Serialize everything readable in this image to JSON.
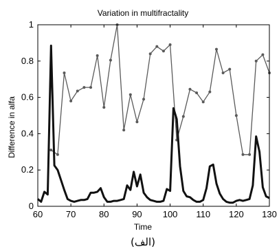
{
  "chart_data": {
    "type": "line",
    "title": "Variation in multifractality",
    "xlabel": "Time",
    "ylabel": "Difference in alfa",
    "caption": "(الف)",
    "xlim": [
      60,
      130
    ],
    "ylim": [
      0,
      1
    ],
    "xticks": [
      60,
      70,
      80,
      90,
      100,
      110,
      120,
      130
    ],
    "yticks": [
      0,
      0.2,
      0.4,
      0.6,
      0.8,
      1
    ],
    "ytick_labels": [
      "0",
      "0.2",
      "0.4",
      "0.6",
      "0.8",
      "1"
    ],
    "grid": false,
    "colors": {
      "thin_series": "#5a5a5a",
      "thick_series": "#111111",
      "axes": "#000000"
    },
    "series": [
      {
        "style": "thin-with-dot-markers",
        "x": [
          64,
          66,
          68,
          70,
          72,
          74,
          76,
          78,
          80,
          82,
          84,
          86,
          88,
          90,
          92,
          94,
          96,
          98,
          100,
          102,
          104,
          106,
          108,
          110,
          112,
          114,
          116,
          118,
          120,
          122,
          124,
          126,
          128,
          130
        ],
        "y": [
          0.31,
          0.285,
          0.735,
          0.58,
          0.635,
          0.655,
          0.655,
          0.83,
          0.545,
          0.805,
          1.0,
          0.42,
          0.615,
          0.465,
          0.59,
          0.84,
          0.88,
          0.855,
          0.89,
          0.365,
          0.495,
          0.645,
          0.625,
          0.575,
          0.63,
          0.865,
          0.735,
          0.755,
          0.5,
          0.285,
          0.285,
          0.8,
          0.835,
          0.735
        ]
      },
      {
        "style": "thick",
        "x": [
          60,
          61,
          62,
          63,
          64,
          65,
          66,
          67,
          68,
          69,
          70,
          71,
          72,
          73,
          74,
          75,
          76,
          77,
          78,
          79,
          80,
          81,
          82,
          83,
          84,
          85,
          86,
          87,
          88,
          89,
          90,
          91,
          92,
          93,
          94,
          95,
          96,
          97,
          98,
          99,
          100,
          101,
          102,
          103,
          104,
          105,
          106,
          107,
          108,
          109,
          110,
          111,
          112,
          113,
          114,
          115,
          116,
          117,
          118,
          119,
          120,
          121,
          122,
          123,
          124,
          125,
          126,
          127,
          128,
          129,
          130
        ],
        "y": [
          0.04,
          0.025,
          0.08,
          0.065,
          0.885,
          0.225,
          0.2,
          0.145,
          0.09,
          0.04,
          0.03,
          0.025,
          0.03,
          0.035,
          0.035,
          0.04,
          0.075,
          0.075,
          0.08,
          0.1,
          0.05,
          0.025,
          0.025,
          0.03,
          0.03,
          0.035,
          0.04,
          0.115,
          0.09,
          0.19,
          0.11,
          0.175,
          0.075,
          0.05,
          0.035,
          0.03,
          0.025,
          0.025,
          0.03,
          0.095,
          0.085,
          0.54,
          0.48,
          0.22,
          0.085,
          0.055,
          0.05,
          0.035,
          0.025,
          0.025,
          0.035,
          0.1,
          0.22,
          0.23,
          0.125,
          0.07,
          0.04,
          0.025,
          0.02,
          0.02,
          0.03,
          0.035,
          0.03,
          0.035,
          0.04,
          0.115,
          0.385,
          0.3,
          0.105,
          0.055,
          0.045
        ]
      }
    ]
  }
}
